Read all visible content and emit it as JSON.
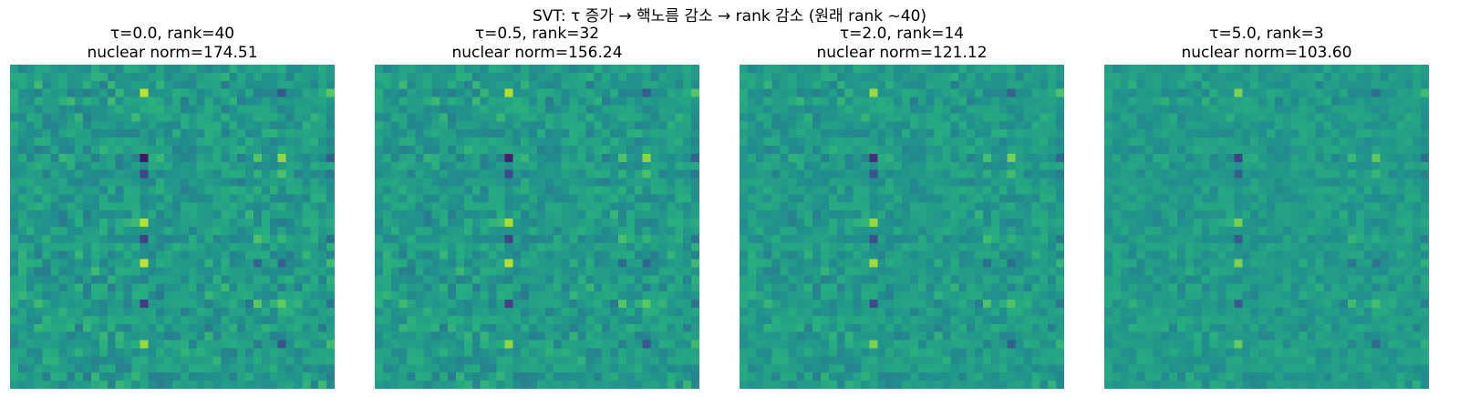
{
  "figure_title": "SVT: τ 증가 → 핵노름 감소 → rank 감소 (원래 rank ~40)",
  "colors": {
    "colormap": "viridis",
    "background": "#ffffff"
  },
  "chart_data": [
    {
      "type": "heatmap",
      "title_line1": "τ=0.0, rank=40",
      "title_line2": "nuclear norm=174.51",
      "tau": 0.0,
      "rank": 40,
      "nuclear_norm": 174.51,
      "grid": false,
      "axes_visible": false,
      "matrix_shape": [
        40,
        40
      ],
      "value_scale": 1.0
    },
    {
      "type": "heatmap",
      "title_line1": "τ=0.5, rank=32",
      "title_line2": "nuclear norm=156.24",
      "tau": 0.5,
      "rank": 32,
      "nuclear_norm": 156.24,
      "grid": false,
      "axes_visible": false,
      "matrix_shape": [
        40,
        40
      ],
      "value_scale": 0.95
    },
    {
      "type": "heatmap",
      "title_line1": "τ=2.0, rank=14",
      "title_line2": "nuclear norm=121.12",
      "tau": 2.0,
      "rank": 14,
      "nuclear_norm": 121.12,
      "grid": false,
      "axes_visible": false,
      "matrix_shape": [
        40,
        40
      ],
      "value_scale": 0.85
    },
    {
      "type": "heatmap",
      "title_line1": "τ=5.0, rank=3",
      "title_line2": "nuclear norm=103.60",
      "tau": 5.0,
      "rank": 3,
      "nuclear_norm": 103.6,
      "grid": false,
      "axes_visible": false,
      "matrix_shape": [
        40,
        40
      ],
      "value_scale": 0.7
    }
  ]
}
